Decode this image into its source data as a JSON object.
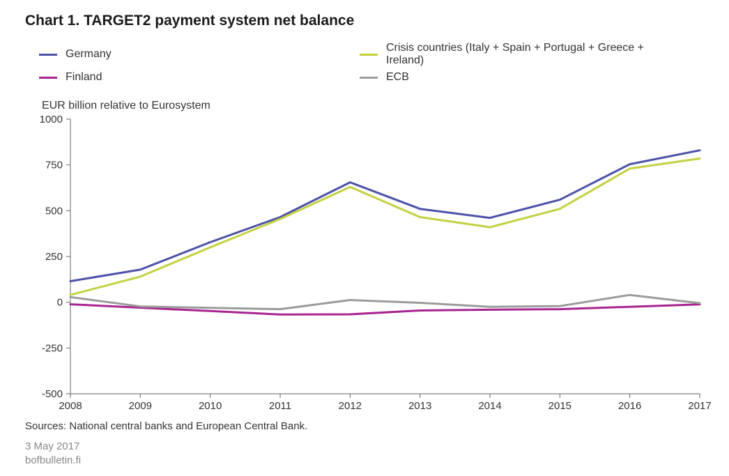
{
  "chart": {
    "type": "line",
    "title": "Chart 1. TARGET2 payment system net balance",
    "ylabel": "EUR billion relative to Eurosystem",
    "x_categories": [
      "2008",
      "2009",
      "2010",
      "2011",
      "2012",
      "2013",
      "2014",
      "2015",
      "2016",
      "2017"
    ],
    "ylim": [
      -500,
      1000
    ],
    "ytick_step": 250,
    "yticks": [
      -500,
      -250,
      0,
      250,
      500,
      750,
      1000
    ],
    "x_label_angle": 0,
    "line_width": 3,
    "title_fontsize": 21,
    "label_fontsize": 16,
    "tick_fontsize": 15,
    "background_color": "#ffffff",
    "grid": false,
    "axis_color": "#666666",
    "tick_color": "#666666",
    "tick_length": 6,
    "series": [
      {
        "name": "Germany",
        "color": "#4b52a8",
        "values": [
          115,
          178,
          328,
          465,
          655,
          510,
          461,
          560,
          754,
          830
        ]
      },
      {
        "name": "Crisis countries (Italy + Spain + Portugal + Greece + Ireland)",
        "color": "#c3d141",
        "values": [
          40,
          140,
          300,
          455,
          630,
          465,
          410,
          510,
          730,
          785
        ]
      },
      {
        "name": "Finland",
        "color": "#a8248f",
        "values": [
          -11,
          -30,
          -48,
          -67,
          -66,
          -45,
          -41,
          -38,
          -25,
          -12
        ]
      },
      {
        "name": "ECB",
        "color": "#9b9b9b",
        "values": [
          28,
          -23,
          -31,
          -38,
          12,
          -3,
          -25,
          -21,
          40,
          -5
        ]
      }
    ],
    "legend_layout": [
      [
        "Germany",
        "Crisis countries (Italy + Spain + Portugal + Greece + Ireland)"
      ],
      [
        "Finland",
        "ECB"
      ]
    ],
    "source_line": "Sources: National central banks and European Central Bank.",
    "date_line": "3 May 2017",
    "site_line": "bofbulletin.fi"
  }
}
